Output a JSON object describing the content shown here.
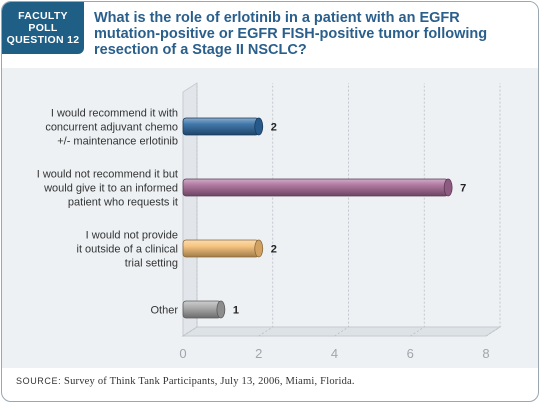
{
  "badge": {
    "lines": [
      "FACULTY",
      "POLL",
      "QUESTION 12"
    ]
  },
  "question": "What is the role of erlotinib in a patient with an EGFR mutation-positive or EGFR FISH-positive tumor following resection of a Stage II NSCLC?",
  "footer": {
    "source_label": "SOURCE:",
    "source_text": " Survey of Think Tank Participants, July 13, 2006, Miami, Florida."
  },
  "colors": {
    "badge_bg": "#1f5f86",
    "question_text": "#2a5f8c",
    "panel_bg": "#edf1f4"
  },
  "chart_data": {
    "type": "bar",
    "orientation": "horizontal",
    "categories": [
      [
        "I would recommend it with",
        "concurrent adjuvant chemo",
        "+/- maintenance erlotinib"
      ],
      [
        "I would not recommend it but",
        "would give it to an informed",
        "patient who requests it"
      ],
      [
        "I would not provide",
        "it outside of a clinical",
        "trial setting"
      ],
      [
        "Other"
      ]
    ],
    "values": [
      2,
      7,
      2,
      1
    ],
    "bar_colors": [
      "#2e6aa3",
      "#a86a98",
      "#f6bf73",
      "#a6a6a6"
    ],
    "xlim": [
      0,
      8
    ],
    "xticks": [
      0,
      2,
      4,
      6,
      8
    ],
    "grid": true,
    "style": "3d-cylinder"
  }
}
